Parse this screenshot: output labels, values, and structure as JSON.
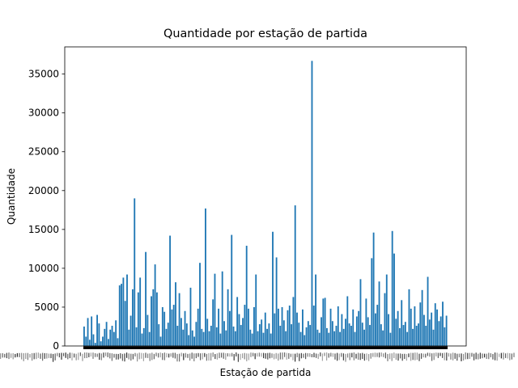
{
  "chart_data": {
    "type": "bar",
    "title": "Quantidade por estação de partida",
    "xlabel": "Estação de partida",
    "ylabel": "Quantidade",
    "ylim": [
      0,
      38500
    ],
    "y_ticks": [
      0,
      5000,
      10000,
      15000,
      20000,
      25000,
      30000,
      35000
    ],
    "x_tick_labels_legible": false,
    "bar_color": "#1f77b4",
    "values": [
      2500,
      1200,
      3600,
      800,
      3800,
      1500,
      400,
      4000,
      2900,
      600,
      1200,
      2200,
      3100,
      900,
      2100,
      2600,
      1800,
      3300,
      1000,
      7800,
      8000,
      8800,
      5800,
      9200,
      2100,
      3900,
      7300,
      19000,
      2400,
      6900,
      8800,
      1600,
      2300,
      12100,
      4000,
      1800,
      6400,
      7300,
      10500,
      6900,
      2800,
      1200,
      5000,
      4400,
      2200,
      3000,
      14200,
      4700,
      5300,
      8200,
      2600,
      6800,
      3600,
      2100,
      4500,
      2900,
      1400,
      7500,
      2000,
      1200,
      3100,
      4800,
      10700,
      2200,
      1800,
      17700,
      3500,
      1900,
      2600,
      6000,
      9300,
      2400,
      4800,
      1600,
      9600,
      3200,
      2000,
      7300,
      4500,
      14300,
      2500,
      1900,
      6300,
      4100,
      2700,
      3600,
      5300,
      12900,
      4800,
      2100,
      1600,
      5000,
      9200,
      1900,
      2800,
      3400,
      1700,
      4300,
      2200,
      2900,
      1600,
      14700,
      4200,
      11400,
      4800,
      2600,
      5000,
      3300,
      1900,
      4600,
      5200,
      2800,
      6300,
      18100,
      4300,
      3000,
      1800,
      4700,
      1400,
      2400,
      3200,
      2700,
      36700,
      5200,
      9200,
      2100,
      1700,
      3700,
      6100,
      6200,
      2300,
      1700,
      4800,
      3200,
      1900,
      2600,
      5100,
      1800,
      4100,
      2200,
      3500,
      6400,
      2900,
      2600,
      4700,
      1800,
      3800,
      4500,
      8600,
      3000,
      2100,
      6100,
      3700,
      2700,
      11300,
      14600,
      4200,
      5300,
      8300,
      2800,
      2000,
      6800,
      9200,
      4100,
      1700,
      14800,
      11900,
      3500,
      4500,
      2300,
      5900,
      2700,
      3100,
      1800,
      7300,
      4800,
      2200,
      5100,
      2600,
      2900,
      5600,
      7200,
      4000,
      2600,
      8900,
      3400,
      4300,
      2100,
      5500,
      4700,
      3200,
      3800,
      5700,
      2400,
      3900
    ]
  }
}
